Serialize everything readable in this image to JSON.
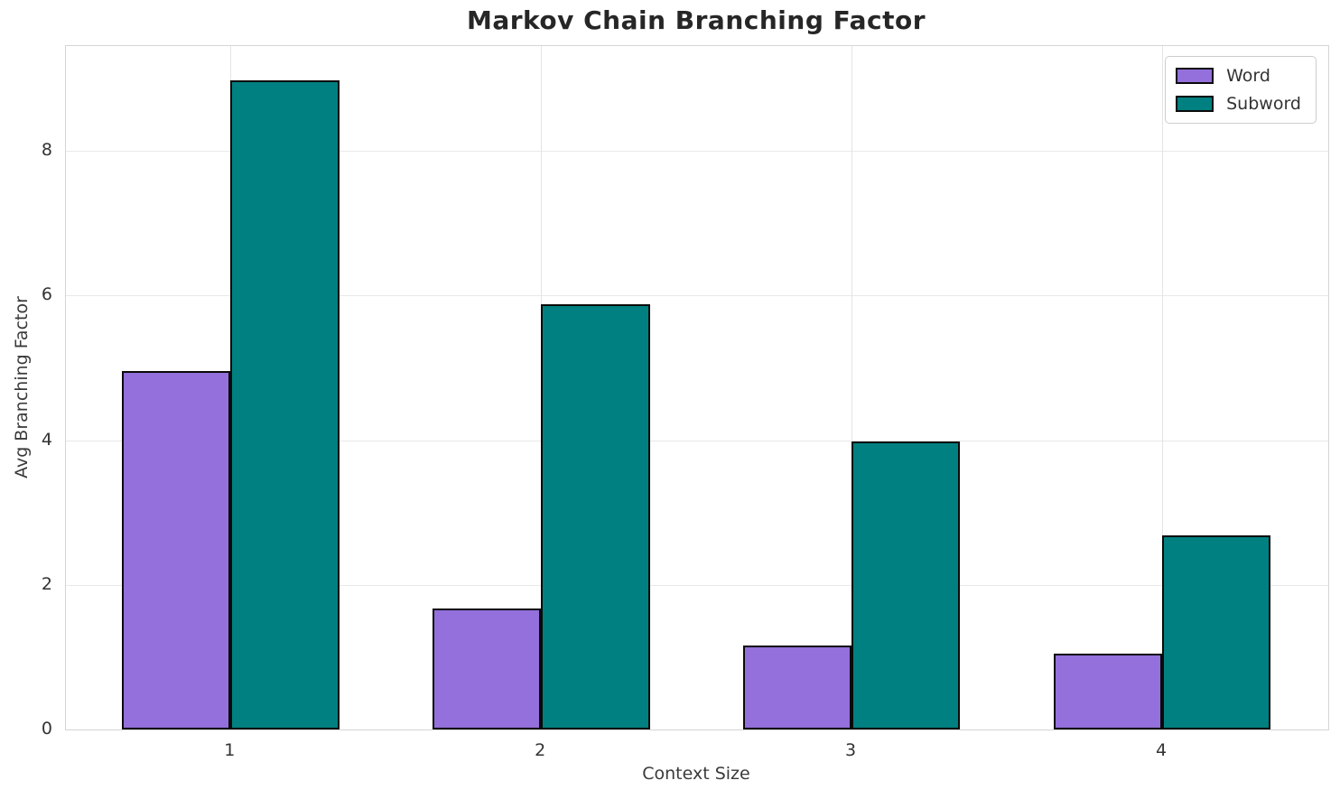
{
  "chart_data": {
    "type": "bar",
    "title": "Markov Chain Branching Factor",
    "xlabel": "Context Size",
    "ylabel": "Avg Branching Factor",
    "categories": [
      "1",
      "2",
      "3",
      "4"
    ],
    "x": [
      1,
      2,
      3,
      4
    ],
    "series": [
      {
        "name": "Word",
        "color": "#9370DB",
        "values": [
          4.95,
          1.67,
          1.16,
          1.05
        ]
      },
      {
        "name": "Subword",
        "color": "#008080",
        "values": [
          8.97,
          5.88,
          3.98,
          2.68
        ]
      }
    ],
    "bar_width": 0.35,
    "edge_color": "#0a0a0a",
    "xlim": [
      0.47,
      4.535
    ],
    "ylim": [
      0,
      9.45
    ],
    "yticks": [
      0,
      2,
      4,
      6,
      8
    ],
    "grid": true,
    "grid_color": "#e8e8e8",
    "spine_color": "#d5d5d5",
    "legend_position": "upper-right",
    "background": "#ffffff",
    "text_color": "#262626"
  }
}
